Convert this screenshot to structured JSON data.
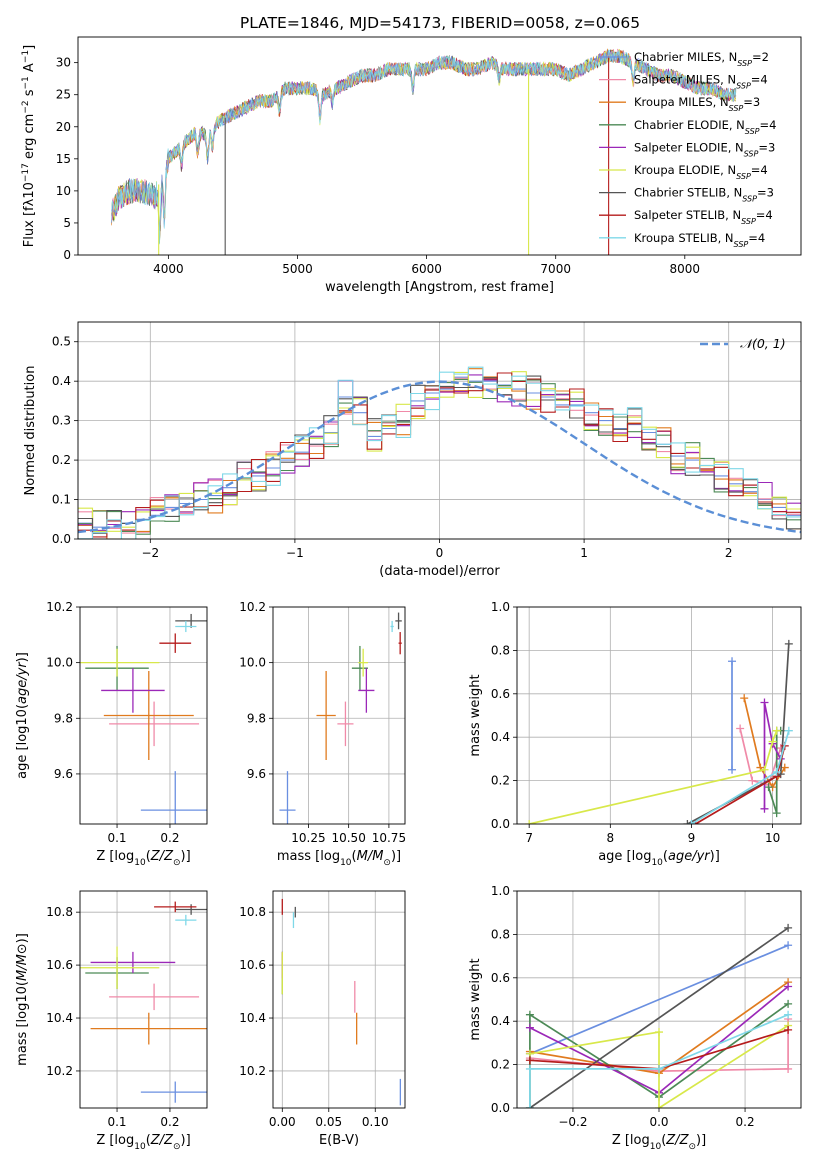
{
  "title": "PLATE=1846, MJD=54173, FIBERID=0058, z=0.065",
  "colors": [
    "#6a8fe0",
    "#f08aa8",
    "#e07b1f",
    "#4c8a56",
    "#9b28b8",
    "#d8e84a",
    "#555555",
    "#b51c1c",
    "#7fd8e8"
  ],
  "legend": {
    "spectrum": [
      {
        "pre": "Chabrier MILES, N",
        "sub": "SSP",
        "post": "=2"
      },
      {
        "pre": "Salpeter MILES, N",
        "sub": "SSP",
        "post": "=4"
      },
      {
        "pre": "Kroupa MILES, N",
        "sub": "SSP",
        "post": "=3"
      },
      {
        "pre": "Chabrier ELODIE, N",
        "sub": "SSP",
        "post": "=4"
      },
      {
        "pre": "Salpeter ELODIE, N",
        "sub": "SSP",
        "post": "=3"
      },
      {
        "pre": "Kroupa ELODIE, N",
        "sub": "SSP",
        "post": "=4"
      },
      {
        "pre": "Chabrier STELIB, N",
        "sub": "SSP",
        "post": "=3"
      },
      {
        "pre": "Salpeter STELIB, N",
        "sub": "SSP",
        "post": "=4"
      },
      {
        "pre": "Kroupa STELIB, N",
        "sub": "SSP",
        "post": "=4"
      }
    ],
    "gaussian": "𝒩(0, 1)"
  },
  "chart_data": [
    {
      "id": "spectrum",
      "type": "line",
      "xlabel": "wavelength [Angstrom, rest frame]",
      "ylabel": "Flux [f_λ 10^-17 erg cm^-2 s^-1 A^-1]",
      "xlim": [
        3300,
        8900
      ],
      "ylim": [
        0,
        34
      ],
      "xticks": [
        4000,
        5000,
        6000,
        7000,
        8000
      ],
      "yticks": [
        0,
        5,
        10,
        15,
        20,
        25,
        30
      ],
      "continuum": [
        [
          3550,
          6
        ],
        [
          3620,
          9
        ],
        [
          3700,
          10
        ],
        [
          3800,
          10
        ],
        [
          3900,
          9
        ],
        [
          3950,
          13
        ],
        [
          4000,
          15
        ],
        [
          4100,
          17
        ],
        [
          4200,
          19
        ],
        [
          4300,
          19
        ],
        [
          4400,
          21
        ],
        [
          4500,
          22
        ],
        [
          4600,
          23
        ],
        [
          4700,
          24
        ],
        [
          4800,
          24
        ],
        [
          4900,
          26
        ],
        [
          5000,
          26
        ],
        [
          5100,
          26
        ],
        [
          5200,
          25
        ],
        [
          5300,
          26
        ],
        [
          5400,
          27
        ],
        [
          5500,
          28
        ],
        [
          5600,
          28
        ],
        [
          5700,
          29
        ],
        [
          5800,
          29
        ],
        [
          5900,
          29
        ],
        [
          6000,
          29
        ],
        [
          6100,
          30
        ],
        [
          6200,
          30
        ],
        [
          6300,
          29
        ],
        [
          6400,
          29
        ],
        [
          6500,
          30
        ],
        [
          6600,
          29
        ],
        [
          6700,
          29
        ],
        [
          6800,
          29
        ],
        [
          6900,
          29
        ],
        [
          7000,
          29
        ],
        [
          7100,
          28
        ],
        [
          7200,
          29
        ],
        [
          7300,
          30
        ],
        [
          7400,
          31
        ],
        [
          7500,
          31
        ],
        [
          7600,
          30
        ],
        [
          7700,
          29
        ],
        [
          7800,
          28
        ],
        [
          7900,
          28
        ],
        [
          8000,
          27
        ],
        [
          8100,
          26
        ],
        [
          8200,
          26
        ],
        [
          8300,
          25
        ],
        [
          8400,
          25
        ]
      ],
      "absorption_lines": [
        [
          3933,
          8
        ],
        [
          3968,
          8
        ],
        [
          4102,
          3
        ],
        [
          4227,
          3
        ],
        [
          4304,
          4
        ],
        [
          4340,
          3
        ],
        [
          4861,
          3
        ],
        [
          5175,
          4
        ],
        [
          5270,
          2
        ],
        [
          5893,
          3
        ],
        [
          6563,
          2
        ],
        [
          7600,
          3
        ]
      ],
      "drops": [
        {
          "x": 3925,
          "color_index": 5
        },
        {
          "x": 4440,
          "color_index": 6
        },
        {
          "x": 6790,
          "color_index": 5
        },
        {
          "x": 7410,
          "color_index": 7
        }
      ]
    },
    {
      "id": "residuals",
      "type": "histogram",
      "xlabel": "(data-model)/error",
      "ylabel": "Normed distribution",
      "xlim": [
        -2.5,
        2.5
      ],
      "ylim": [
        0,
        0.55
      ],
      "xticks": [
        -2,
        -1,
        0,
        1,
        2
      ],
      "yticks": [
        0.0,
        0.1,
        0.2,
        0.3,
        0.4,
        0.5
      ],
      "bin_width": 0.1,
      "series": [
        {
          "label": "",
          "values": [
            0.04,
            0.03,
            0.03,
            0.04,
            0.05,
            0.06,
            0.08,
            0.09,
            0.1,
            0.11,
            0.13,
            0.15,
            0.16,
            0.18,
            0.2,
            0.22,
            0.24,
            0.27,
            0.36,
            0.32,
            0.26,
            0.28,
            0.3,
            0.35,
            0.37,
            0.38,
            0.41,
            0.4,
            0.4,
            0.39,
            0.38,
            0.37,
            0.36,
            0.34,
            0.34,
            0.32,
            0.3,
            0.28,
            0.29,
            0.27,
            0.24,
            0.21,
            0.2,
            0.17,
            0.16,
            0.14,
            0.12,
            0.1,
            0.08,
            0.06
          ]
        }
      ],
      "gaussian": {
        "mean": 0,
        "sigma": 1
      }
    },
    {
      "id": "age-vs-Z",
      "type": "errorbar",
      "xlabel": "Z [log10(Z/Z⊙)]",
      "ylabel": "age [log10(age/yr)]",
      "xlim": [
        0.03,
        0.27
      ],
      "ylim": [
        9.42,
        10.2
      ],
      "xticks": [
        0.1,
        0.2
      ],
      "yticks": [
        9.6,
        9.8,
        10.0,
        10.2
      ],
      "points": [
        {
          "x": 0.21,
          "y": 9.47,
          "xerr": 0.065,
          "yerr": 0.14,
          "c": 0
        },
        {
          "x": 0.17,
          "y": 9.78,
          "xerr": 0.085,
          "yerr": 0.08,
          "c": 1
        },
        {
          "x": 0.16,
          "y": 9.81,
          "xerr": 0.085,
          "yerr": 0.16,
          "c": 2
        },
        {
          "x": 0.1,
          "y": 9.98,
          "xerr": 0.06,
          "yerr": 0.08,
          "c": 3
        },
        {
          "x": 0.13,
          "y": 9.9,
          "xerr": 0.06,
          "yerr": 0.08,
          "c": 4
        },
        {
          "x": 0.1,
          "y": 10.0,
          "xerr": 0.08,
          "yerr": 0.05,
          "c": 5
        },
        {
          "x": 0.24,
          "y": 10.15,
          "xerr": 0.03,
          "yerr": 0.025,
          "c": 6
        },
        {
          "x": 0.21,
          "y": 10.07,
          "xerr": 0.03,
          "yerr": 0.035,
          "c": 7
        },
        {
          "x": 0.23,
          "y": 10.13,
          "xerr": 0.02,
          "yerr": 0.02,
          "c": 8
        }
      ]
    },
    {
      "id": "age-vs-mass",
      "type": "errorbar",
      "xlabel": "mass [log10(M/M⊙)]",
      "ylabel": "",
      "xlim": [
        10.03,
        10.85
      ],
      "ylim": [
        9.42,
        10.2
      ],
      "xticks": [
        10.25,
        10.5,
        10.75
      ],
      "yticks": [
        9.6,
        9.8,
        10.0,
        10.2
      ],
      "points": [
        {
          "x": 10.12,
          "y": 9.47,
          "xerr": 0.05,
          "yerr": 0.14,
          "c": 0
        },
        {
          "x": 10.48,
          "y": 9.78,
          "xerr": 0.05,
          "yerr": 0.08,
          "c": 1
        },
        {
          "x": 10.36,
          "y": 9.81,
          "xerr": 0.06,
          "yerr": 0.16,
          "c": 2
        },
        {
          "x": 10.57,
          "y": 9.98,
          "xerr": 0.05,
          "yerr": 0.08,
          "c": 3
        },
        {
          "x": 10.61,
          "y": 9.9,
          "xerr": 0.05,
          "yerr": 0.08,
          "c": 4
        },
        {
          "x": 10.59,
          "y": 10.0,
          "xerr": 0.03,
          "yerr": 0.05,
          "c": 5
        },
        {
          "x": 10.81,
          "y": 10.15,
          "xerr": 0.02,
          "yerr": 0.03,
          "c": 6
        },
        {
          "x": 10.82,
          "y": 10.07,
          "xerr": 0.01,
          "yerr": 0.04,
          "c": 7
        },
        {
          "x": 10.77,
          "y": 10.13,
          "xerr": 0.01,
          "yerr": 0.02,
          "c": 8
        }
      ]
    },
    {
      "id": "massweight-vs-age",
      "type": "line",
      "xlabel": "age [log10(age/yr)]",
      "ylabel": "mass weight",
      "xlim": [
        6.85,
        10.35
      ],
      "ylim": [
        0,
        1
      ],
      "xticks": [
        7,
        8,
        9,
        10
      ],
      "yticks": [
        0.0,
        0.2,
        0.4,
        0.6,
        0.8,
        1.0
      ],
      "series": [
        {
          "c": 0,
          "pts": [
            [
              9.5,
              0.25
            ],
            [
              9.5,
              0.75
            ]
          ]
        },
        {
          "c": 1,
          "pts": [
            [
              9.6,
              0.44
            ],
            [
              9.75,
              0.2
            ],
            [
              9.95,
              0.18
            ],
            [
              10.1,
              0.35
            ]
          ]
        },
        {
          "c": 2,
          "pts": [
            [
              9.65,
              0.58
            ],
            [
              9.85,
              0.26
            ],
            [
              10.0,
              0.17
            ],
            [
              10.15,
              0.26
            ]
          ]
        },
        {
          "c": 3,
          "pts": [
            [
              9.95,
              0.17
            ],
            [
              10.05,
              0.05
            ],
            [
              10.05,
              0.43
            ],
            [
              10.1,
              0.43
            ]
          ]
        },
        {
          "c": 4,
          "pts": [
            [
              9.9,
              0.07
            ],
            [
              9.9,
              0.56
            ],
            [
              10.0,
              0.37
            ],
            [
              10.1,
              0.3
            ]
          ]
        },
        {
          "c": 5,
          "pts": [
            [
              7.0,
              0.0
            ],
            [
              9.9,
              0.25
            ],
            [
              10.0,
              0.38
            ],
            [
              10.05,
              0.43
            ]
          ]
        },
        {
          "c": 6,
          "pts": [
            [
              8.95,
              0.0
            ],
            [
              10.1,
              0.23
            ],
            [
              10.2,
              0.83
            ]
          ]
        },
        {
          "c": 7,
          "pts": [
            [
              9.05,
              0.0
            ],
            [
              10.05,
              0.22
            ],
            [
              10.15,
              0.36
            ]
          ]
        },
        {
          "c": 8,
          "pts": [
            [
              9.0,
              0.0
            ],
            [
              10.05,
              0.24
            ],
            [
              10.2,
              0.43
            ]
          ]
        }
      ]
    },
    {
      "id": "mass-vs-Z",
      "type": "errorbar",
      "xlabel": "Z [log10(Z/Z⊙)]",
      "ylabel": "mass [log10(M/M⊙)]",
      "xlim": [
        0.03,
        0.27
      ],
      "ylim": [
        10.06,
        10.88
      ],
      "xticks": [
        0.1,
        0.2
      ],
      "yticks": [
        10.2,
        10.4,
        10.6,
        10.8
      ],
      "points": [
        {
          "x": 0.21,
          "y": 10.12,
          "xerr": 0.065,
          "yerr": 0.04,
          "c": 0
        },
        {
          "x": 0.17,
          "y": 10.48,
          "xerr": 0.085,
          "yerr": 0.05,
          "c": 1
        },
        {
          "x": 0.16,
          "y": 10.36,
          "xerr": 0.11,
          "yerr": 0.06,
          "c": 2
        },
        {
          "x": 0.1,
          "y": 10.57,
          "xerr": 0.06,
          "yerr": 0.06,
          "c": 3
        },
        {
          "x": 0.13,
          "y": 10.61,
          "xerr": 0.08,
          "yerr": 0.04,
          "c": 4
        },
        {
          "x": 0.1,
          "y": 10.59,
          "xerr": 0.08,
          "yerr": 0.08,
          "c": 5
        },
        {
          "x": 0.24,
          "y": 10.81,
          "xerr": 0.03,
          "yerr": 0.02,
          "c": 6
        },
        {
          "x": 0.21,
          "y": 10.82,
          "xerr": 0.04,
          "yerr": 0.02,
          "c": 7
        },
        {
          "x": 0.23,
          "y": 10.77,
          "xerr": 0.02,
          "yerr": 0.02,
          "c": 8
        }
      ]
    },
    {
      "id": "mass-vs-EBV",
      "type": "errorbar",
      "xlabel": "E(B-V)",
      "ylabel": "",
      "xlim": [
        -0.01,
        0.132
      ],
      "ylim": [
        10.06,
        10.88
      ],
      "xticks": [
        0.0,
        0.05,
        0.1
      ],
      "yticks": [
        10.2,
        10.4,
        10.6,
        10.8
      ],
      "points": [
        {
          "x": 0.127,
          "y": 10.12,
          "xerr": 0,
          "yerr": 0.05,
          "c": 0
        },
        {
          "x": 0.078,
          "y": 10.48,
          "xerr": 0,
          "yerr": 0.06,
          "c": 1
        },
        {
          "x": 0.08,
          "y": 10.36,
          "xerr": 0,
          "yerr": 0.06,
          "c": 2
        },
        {
          "x": 0.0,
          "y": 10.57,
          "xerr": 0,
          "yerr": 0.08,
          "c": 3
        },
        {
          "x": 0.0,
          "y": 10.6,
          "xerr": 0,
          "yerr": 0.05,
          "c": 4
        },
        {
          "x": 0.0,
          "y": 10.57,
          "xerr": 0,
          "yerr": 0.08,
          "c": 5
        },
        {
          "x": 0.014,
          "y": 10.8,
          "xerr": 0,
          "yerr": 0.02,
          "c": 6
        },
        {
          "x": 0.0,
          "y": 10.82,
          "xerr": 0,
          "yerr": 0.03,
          "c": 7
        },
        {
          "x": 0.012,
          "y": 10.77,
          "xerr": 0,
          "yerr": 0.03,
          "c": 8
        }
      ]
    },
    {
      "id": "massweight-vs-Z",
      "type": "line",
      "xlabel": "Z [log10(Z/Z⊙)]",
      "ylabel": "mass weight",
      "xlim": [
        -0.33,
        0.33
      ],
      "ylim": [
        0,
        1
      ],
      "xticks": [
        -0.2,
        0.0,
        0.2
      ],
      "yticks": [
        0.0,
        0.2,
        0.4,
        0.6,
        0.8,
        1.0
      ],
      "series": [
        {
          "c": 0,
          "pts": [
            [
              -0.3,
              0.25
            ],
            [
              0.3,
              0.75
            ]
          ]
        },
        {
          "c": 1,
          "pts": [
            [
              -0.3,
              0.23
            ],
            [
              0.0,
              0.17
            ],
            [
              0.3,
              0.18
            ],
            [
              0.3,
              0.41
            ]
          ]
        },
        {
          "c": 2,
          "pts": [
            [
              -0.3,
              0.26
            ],
            [
              0.0,
              0.16
            ],
            [
              0.3,
              0.58
            ]
          ]
        },
        {
          "c": 3,
          "pts": [
            [
              -0.3,
              0.0
            ],
            [
              -0.3,
              0.43
            ],
            [
              0.0,
              0.05
            ],
            [
              0.3,
              0.48
            ]
          ]
        },
        {
          "c": 4,
          "pts": [
            [
              -0.3,
              0.37
            ],
            [
              0.0,
              0.07
            ],
            [
              0.3,
              0.56
            ]
          ]
        },
        {
          "c": 5,
          "pts": [
            [
              -0.3,
              0.25
            ],
            [
              0.0,
              0.35
            ],
            [
              0.0,
              0.0
            ],
            [
              0.3,
              0.38
            ]
          ]
        },
        {
          "c": 6,
          "pts": [
            [
              -0.3,
              0.0
            ],
            [
              0.3,
              0.83
            ]
          ]
        },
        {
          "c": 7,
          "pts": [
            [
              -0.3,
              0.22
            ],
            [
              0.0,
              0.18
            ],
            [
              0.3,
              0.36
            ]
          ]
        },
        {
          "c": 8,
          "pts": [
            [
              -0.3,
              0.0
            ],
            [
              -0.3,
              0.18
            ],
            [
              0.0,
              0.18
            ],
            [
              0.3,
              0.43
            ]
          ]
        }
      ]
    }
  ]
}
